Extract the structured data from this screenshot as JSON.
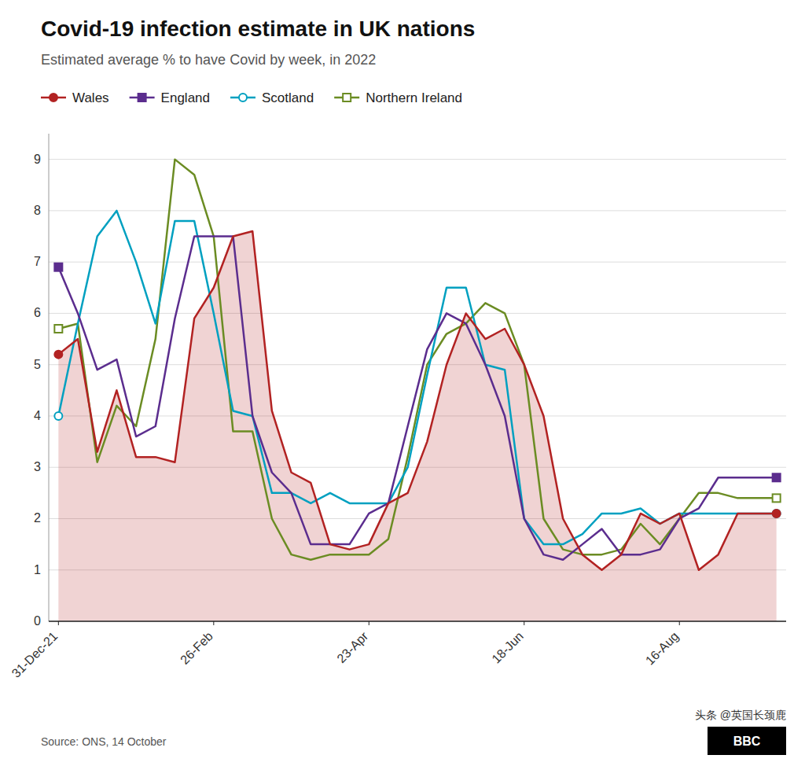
{
  "chart_data": {
    "type": "line",
    "title": "Covid-19 infection estimate in UK nations",
    "subtitle": "Estimated average % to have Covid by week, in 2022",
    "source": "Source: ONS, 14 October",
    "annotations": [
      "BBC",
      "头条 @英国长颈鹿"
    ],
    "categories": [
      "31-Dec-21",
      null,
      null,
      null,
      null,
      null,
      null,
      null,
      "26-Feb",
      null,
      null,
      null,
      null,
      null,
      null,
      null,
      "23-Apr",
      null,
      null,
      null,
      null,
      null,
      null,
      null,
      "18-Jun",
      null,
      null,
      null,
      null,
      null,
      null,
      null,
      "16-Aug",
      null,
      null,
      null,
      null,
      null
    ],
    "series": [
      {
        "name": "Wales",
        "type": "area",
        "color": "#b22222",
        "marker": "circle",
        "values": [
          5.2,
          5.5,
          3.3,
          4.5,
          3.2,
          3.2,
          3.1,
          5.9,
          6.5,
          7.5,
          7.6,
          4.1,
          2.9,
          2.7,
          1.5,
          1.4,
          1.5,
          2.3,
          2.5,
          3.5,
          5.0,
          6.0,
          5.5,
          5.7,
          5.0,
          4.0,
          2.0,
          1.3,
          1.0,
          1.3,
          2.1,
          1.9,
          2.1,
          1.0,
          1.3,
          2.1,
          2.1,
          2.1
        ]
      },
      {
        "name": "England",
        "type": "line",
        "color": "#5b2d8e",
        "marker": "square",
        "values": [
          6.9,
          6.0,
          4.9,
          5.1,
          3.6,
          3.8,
          5.9,
          7.5,
          7.5,
          7.5,
          4.0,
          2.9,
          2.5,
          1.5,
          1.5,
          1.5,
          2.1,
          2.3,
          3.8,
          5.3,
          6.0,
          5.8,
          5.0,
          4.0,
          2.0,
          1.3,
          1.2,
          1.5,
          1.8,
          1.3,
          1.3,
          1.4,
          2.0,
          2.2,
          2.8,
          2.8,
          2.8,
          2.8
        ]
      },
      {
        "name": "Scotland",
        "type": "line",
        "color": "#00a0c0",
        "marker": "open-circle",
        "values": [
          4.0,
          5.8,
          7.5,
          8.0,
          7.0,
          5.8,
          7.8,
          7.8,
          6.0,
          4.1,
          4.0,
          2.5,
          2.5,
          2.3,
          2.5,
          2.3,
          2.3,
          2.3,
          3.0,
          4.8,
          6.5,
          6.5,
          5.0,
          4.9,
          2.0,
          1.5,
          1.5,
          1.7,
          2.1,
          2.1,
          2.2,
          1.9,
          2.1,
          2.1,
          2.1,
          2.1,
          2.1,
          2.1
        ]
      },
      {
        "name": "Northern Ireland",
        "type": "line",
        "color": "#6b8c23",
        "marker": "open-square",
        "values": [
          5.7,
          5.8,
          3.1,
          4.2,
          3.8,
          5.5,
          9.0,
          8.7,
          7.5,
          3.7,
          3.7,
          2.0,
          1.3,
          1.2,
          1.3,
          1.3,
          1.3,
          1.6,
          3.2,
          5.0,
          5.6,
          5.8,
          6.2,
          6.0,
          5.0,
          2.0,
          1.4,
          1.3,
          1.3,
          1.4,
          1.9,
          1.5,
          2.0,
          2.5,
          2.5,
          2.4,
          2.4,
          2.4
        ]
      }
    ],
    "ylim": [
      0,
      9.5
    ],
    "yticks": [
      0,
      1,
      2,
      3,
      4,
      5,
      6,
      7,
      8,
      9
    ],
    "grid": true,
    "legend": "top"
  }
}
